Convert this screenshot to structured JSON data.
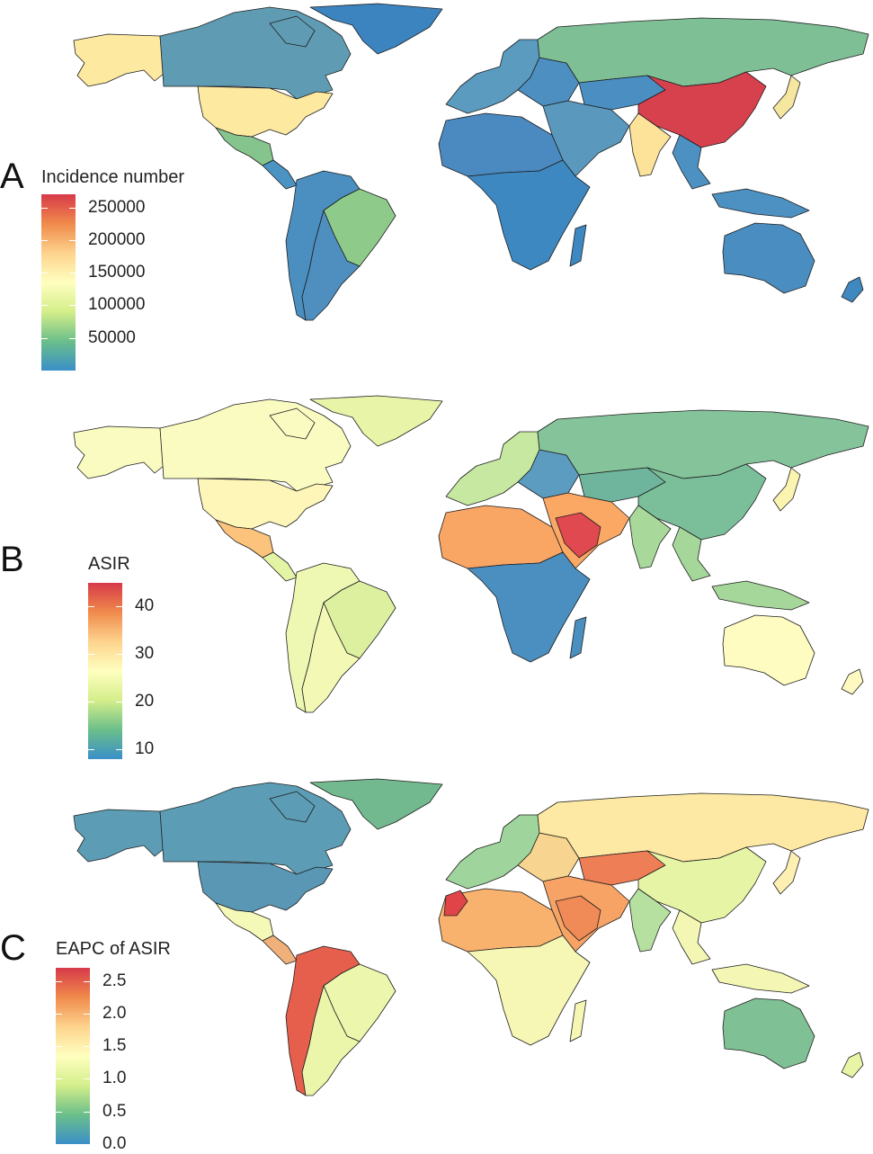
{
  "panels": [
    {
      "letter": "A",
      "legend": {
        "title": "Incidence number",
        "ticks": [
          "250000",
          "200000",
          "150000",
          "100000",
          "50000"
        ],
        "min": 0,
        "max": 270000,
        "tick_values": [
          250000,
          200000,
          150000,
          100000,
          50000
        ],
        "colors": [
          "#d73a4a",
          "#f08a4b",
          "#fdd38d",
          "#ffffbf",
          "#d4ee8a",
          "#6bbf8a",
          "#3a8fc8"
        ]
      },
      "fills": {
        "north_america_canada": "#5f9cb3",
        "alaska": "#fdeaa0",
        "greenland": "#3b84c0",
        "usa": "#fde9a0",
        "mexico": "#86c48e",
        "central_america": "#4b93c2",
        "south_america_north": "#4b8fc0",
        "brazil": "#8ecb8a",
        "south_america_south": "#4f8fc0",
        "europe_west": "#5a9bbf",
        "europe_east": "#4d8fc1",
        "russia": "#7fbf96",
        "middle_east": "#5a99bd",
        "africa_north": "#4b8ac0",
        "africa_sub": "#3e88c1",
        "india": "#fde39a",
        "china": "#d7404d",
        "central_asia": "#4a8ec2",
        "southeast_asia": "#4c91c2",
        "japan": "#f6e7a0",
        "australia": "#4a8dc0",
        "new_zealand": "#4088c0"
      }
    },
    {
      "letter": "B",
      "legend": {
        "title": "ASIR",
        "ticks": [
          "40",
          "30",
          "20",
          "10"
        ],
        "min": 8,
        "max": 45,
        "tick_values": [
          40,
          30,
          20,
          10
        ],
        "colors": [
          "#d73a4a",
          "#f08a4b",
          "#fdd38d",
          "#ffffbf",
          "#d4ee8a",
          "#6bbf8a",
          "#3a8fc8"
        ]
      },
      "fills": {
        "north_america_canada": "#fafbc0",
        "alaska": "#fafbc0",
        "greenland": "#e8f5a8",
        "usa": "#fef6b8",
        "mexico": "#fcc37c",
        "central_america": "#e4f4a5",
        "south_america_north": "#eef8b3",
        "brazil": "#dcf0a0",
        "south_america_south": "#f3f9b5",
        "europe_west": "#c6e8a0",
        "europe_east": "#5c9cc0",
        "russia": "#85c39b",
        "middle_east": "#fba865",
        "africa_north": "#f9a564",
        "africa_sub": "#4a8fc0",
        "india": "#a8d99a",
        "china": "#7bbf9a",
        "central_asia": "#6fb59e",
        "southeast_asia": "#a6d79a",
        "japan": "#fbf3b0",
        "australia": "#fefcc0",
        "new_zealand": "#fef9c0",
        "saudi": "#e04950"
      }
    },
    {
      "letter": "C",
      "legend": {
        "title": "EAPC of ASIR",
        "ticks": [
          "2.5",
          "2.0",
          "1.5",
          "1.0",
          "0.5",
          "0.0"
        ],
        "min": 0.0,
        "max": 2.7,
        "tick_values": [
          2.5,
          2.0,
          1.5,
          1.0,
          0.5,
          0.0
        ],
        "colors": [
          "#d73a4a",
          "#f08a4b",
          "#fdd38d",
          "#ffffbf",
          "#d4ee8a",
          "#6bbf8a",
          "#3a8fc8"
        ]
      },
      "fills": {
        "north_america_canada": "#5c9db5",
        "alaska": "#5c9db5",
        "greenland": "#72b98f",
        "usa": "#5a97b5",
        "mexico": "#f5f9b8",
        "central_america": "#f0b07a",
        "south_america_north": "#e65f4d",
        "brazil": "#ecf7ad",
        "south_america_south": "#ebf6aa",
        "europe_west": "#9fd59d",
        "europe_east": "#f7d48f",
        "russia": "#fde9a3",
        "middle_east": "#f6a365",
        "africa_north": "#f8b26e",
        "africa_sub": "#f6f7b5",
        "india": "#b6e0a0",
        "china": "#e6f4a5",
        "central_asia": "#ee7e56",
        "southeast_asia": "#f4f7b4",
        "japan": "#fdf0b2",
        "australia": "#7fc195",
        "new_zealand": "#e9f5a6",
        "saudi": "#f08a57",
        "morocco": "#e04448"
      }
    }
  ]
}
